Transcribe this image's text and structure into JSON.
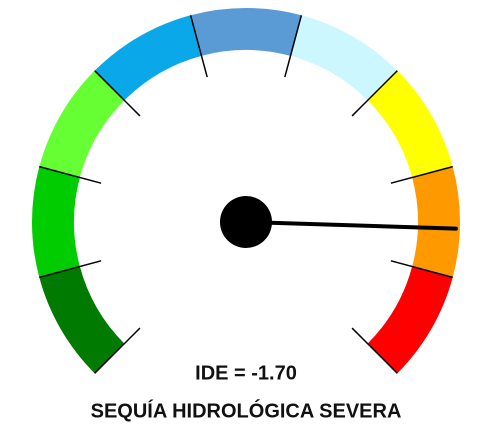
{
  "chart_data": {
    "type": "gauge",
    "value": -1.7,
    "value_label": "IDE = -1.70",
    "subtitle": "SEQUÍA HIDROLÓGICA SEVERA",
    "ylim": [
      2.5,
      -2.5
    ],
    "segment_colors": [
      "#007a00",
      "#00cc00",
      "#66ff33",
      "#0aa8e8",
      "#5b9bd5",
      "#ccf7ff",
      "#ffff00",
      "#ff9900",
      "#ff0000"
    ],
    "needle_color": "#000000"
  }
}
